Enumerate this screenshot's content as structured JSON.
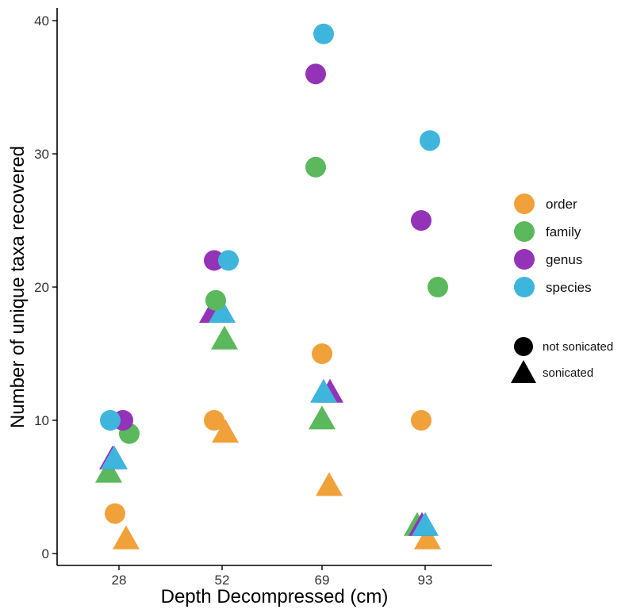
{
  "chart_data": {
    "type": "scatter",
    "xlabel": "Depth Decompressed (cm)",
    "ylabel": "Number of unique taxa recovered",
    "categories": [
      "28",
      "52",
      "69",
      "93"
    ],
    "ylim": [
      0,
      40
    ],
    "yticks": [
      0,
      10,
      20,
      30,
      40
    ],
    "grid": false,
    "legend_position": "right",
    "colors": {
      "order": "#F0A13A",
      "family": "#5BB85C",
      "genus": "#9433B8",
      "species": "#3EB5DD"
    },
    "color_legend": [
      {
        "key": "order",
        "label": "order"
      },
      {
        "key": "family",
        "label": "family"
      },
      {
        "key": "genus",
        "label": "genus"
      },
      {
        "key": "species",
        "label": "species"
      }
    ],
    "shape_legend": [
      {
        "key": "not_sonicated",
        "label": "not sonicated",
        "shape": "circle"
      },
      {
        "key": "sonicated",
        "label": "sonicated",
        "shape": "triangle"
      }
    ],
    "series": [
      {
        "level": "order",
        "treatment": "not_sonicated",
        "values": [
          3,
          10,
          15,
          10
        ]
      },
      {
        "level": "order",
        "treatment": "sonicated",
        "values": [
          1,
          9,
          5,
          1
        ]
      },
      {
        "level": "family",
        "treatment": "not_sonicated",
        "values": [
          9,
          19,
          29,
          20
        ]
      },
      {
        "level": "family",
        "treatment": "sonicated",
        "values": [
          6,
          16,
          10,
          2
        ]
      },
      {
        "level": "genus",
        "treatment": "not_sonicated",
        "values": [
          10,
          22,
          36,
          25
        ]
      },
      {
        "level": "genus",
        "treatment": "sonicated",
        "values": [
          7,
          18,
          12,
          2
        ]
      },
      {
        "level": "species",
        "treatment": "not_sonicated",
        "values": [
          10,
          22,
          39,
          31
        ]
      },
      {
        "level": "species",
        "treatment": "sonicated",
        "values": [
          7,
          18,
          12,
          2
        ]
      }
    ]
  }
}
